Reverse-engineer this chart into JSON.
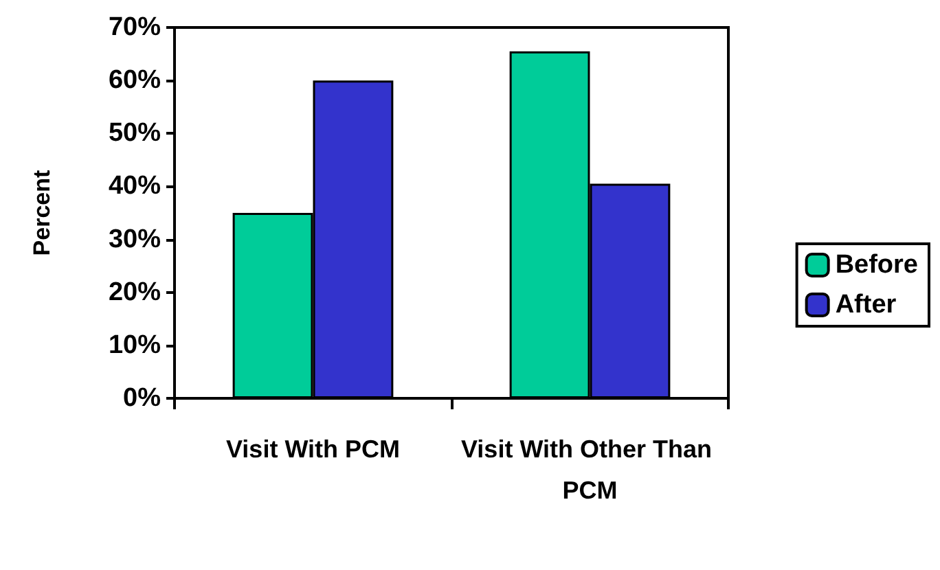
{
  "chart_data": {
    "type": "bar",
    "ylabel": "Percent",
    "categories": [
      "Visit With PCM",
      "Visit With Other Than PCM"
    ],
    "series": [
      {
        "name": "Before",
        "color": "#00cc99",
        "values": [
          35,
          65.5
        ]
      },
      {
        "name": "After",
        "color": "#3333cc",
        "values": [
          60,
          40.5
        ]
      }
    ],
    "ylim": [
      0,
      70
    ],
    "yticks": [
      {
        "value": 0,
        "label": "0%"
      },
      {
        "value": 10,
        "label": "10%"
      },
      {
        "value": 20,
        "label": "20%"
      },
      {
        "value": 30,
        "label": "30%"
      },
      {
        "value": 40,
        "label": "40%"
      },
      {
        "value": 50,
        "label": "50%"
      },
      {
        "value": 60,
        "label": "60%"
      },
      {
        "value": 70,
        "label": "70%"
      }
    ],
    "grid": false,
    "legend": "right"
  }
}
